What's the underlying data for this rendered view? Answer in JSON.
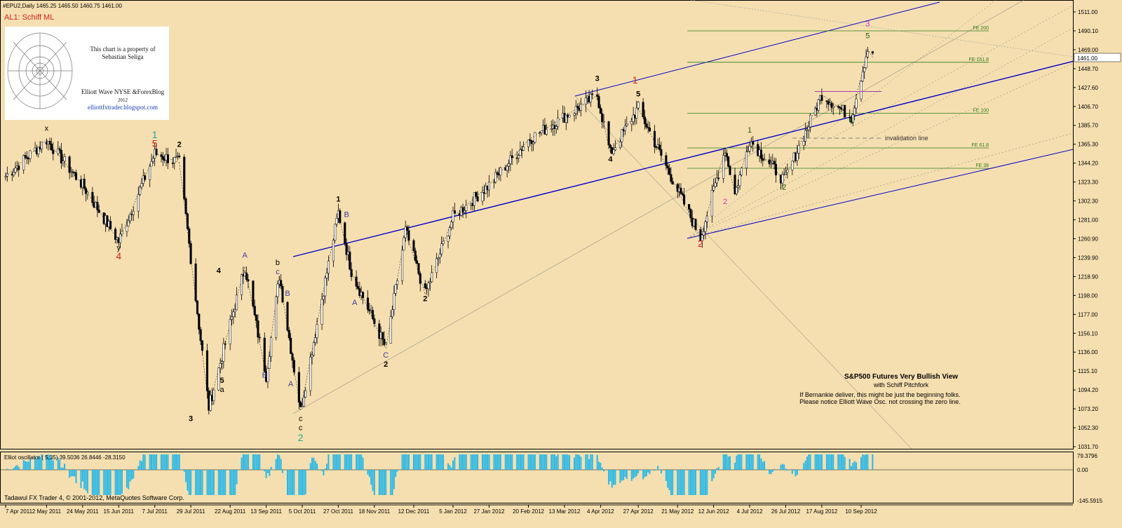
{
  "header": {
    "symbol_line": "#EPU2,Daily  1465.25 1465.50 1460.75 1461.00",
    "indicator_label": "AL1: Schiff ML"
  },
  "watermark": {
    "line1": "This chart is a property of",
    "line2": "Sebastian Seliga",
    "line3": "Elliott Wave NYSE &ForexBlog",
    "line4": "2012",
    "line5": "elliottfxtrader.blogspot.com"
  },
  "annotation": {
    "title": "S&P500 Futures Very Bullish View",
    "subtitle": "with Schiff  Pitchfork",
    "note1": "If Bernankie deliver, this might be just the beginning folks.",
    "note2": "Please notice Elliott Wave Osc. not crossing the zero line.",
    "invalidation": "invalidation line"
  },
  "fib_levels": [
    {
      "label": "FE 200",
      "price": 1490.1
    },
    {
      "label": "FE 161.8",
      "price": 1455.5
    },
    {
      "label": "FE 100",
      "price": 1399.4
    },
    {
      "label": "FE 61.8",
      "price": 1361.0
    },
    {
      "label": "FE 38",
      "price": 1338.6
    }
  ],
  "oscillator": {
    "label": "Elliot oscillator ( 5,35) 39.5036 26.8446 -28.3150",
    "ticks": [
      "79.3796",
      "0.00",
      "-145.5915"
    ]
  },
  "footer": {
    "copyright": "Tadawul FX Trader 4, © 2001-2012, MetaQuotes Software Corp."
  },
  "colors": {
    "background": "#f5dfb0",
    "candles": "#000000",
    "channel": "#0000cc",
    "fib": "#2e7d1a",
    "oscillator_bars": "#29b8e6"
  },
  "chart_data": {
    "type": "candlestick",
    "title": "S&P500 Futures Very Bullish View",
    "symbol": "#EPU2",
    "timeframe": "Daily",
    "ohlc_last": {
      "open": 1465.25,
      "high": 1465.5,
      "low": 1460.75,
      "close": 1461.0
    },
    "current_price_label": "1461.00",
    "x_tick_labels": [
      "7 Apr 2011",
      "2 May 2011",
      "24 May 2011",
      "15 Jun 2011",
      "7 Jul 2011",
      "29 Jul 2011",
      "22 Aug 2011",
      "13 Sep 2011",
      "5 Oct 2011",
      "27 Oct 2011",
      "18 Nov 2011",
      "12 Dec 2011",
      "5 Jan 2012",
      "27 Jan 2012",
      "20 Feb 2012",
      "13 Mar 2012",
      "4 Apr 2012",
      "27 Apr 2012",
      "21 May 2012",
      "12 Jun 2012",
      "4 Jul 2012",
      "26 Jul 2012",
      "17 Aug 2012",
      "10 Sep 2012"
    ],
    "y_tick_labels": [
      "1511.00",
      "1490.10",
      "1469.00",
      "1448.70",
      "1427.60",
      "1406.70",
      "1385.70",
      "1365.30",
      "1344.20",
      "1323.30",
      "1302.30",
      "1281.00",
      "1260.90",
      "1239.90",
      "1218.90",
      "1198.00",
      "1177.00",
      "1156.10",
      "1136.00",
      "1115.10",
      "1094.20",
      "1073.20",
      "1052.30",
      "1031.70"
    ],
    "ylim": [
      1025,
      1520
    ],
    "price_path": [
      {
        "date": "7 Apr 2011",
        "price": 1330
      },
      {
        "date": "2 May 2011",
        "price": 1370
      },
      {
        "date": "24 May 2011",
        "price": 1320
      },
      {
        "date": "15 Jun 2011",
        "price": 1258
      },
      {
        "date": "7 Jul 2011",
        "price": 1355
      },
      {
        "date": "22 Jul 2011",
        "price": 1345
      },
      {
        "date": "9 Aug 2011",
        "price": 1075
      },
      {
        "date": "31 Aug 2011",
        "price": 1230
      },
      {
        "date": "13 Sep 2011",
        "price": 1110
      },
      {
        "date": "21 Sep 2011",
        "price": 1220
      },
      {
        "date": "4 Oct 2011",
        "price": 1072
      },
      {
        "date": "27 Oct 2011",
        "price": 1290
      },
      {
        "date": "4 Nov 2011",
        "price": 1225
      },
      {
        "date": "25 Nov 2011",
        "price": 1140
      },
      {
        "date": "7 Dec 2011",
        "price": 1270
      },
      {
        "date": "19 Dec 2011",
        "price": 1200
      },
      {
        "date": "5 Jan 2012",
        "price": 1285
      },
      {
        "date": "27 Jan 2012",
        "price": 1320
      },
      {
        "date": "20 Feb 2012",
        "price": 1370
      },
      {
        "date": "2 Apr 2012",
        "price": 1419
      },
      {
        "date": "10 Apr 2012",
        "price": 1355
      },
      {
        "date": "27 Apr 2012",
        "price": 1405
      },
      {
        "date": "4 Jun 2012",
        "price": 1262
      },
      {
        "date": "19 Jun 2012",
        "price": 1360
      },
      {
        "date": "25 Jun 2012",
        "price": 1310
      },
      {
        "date": "4 Jul 2012",
        "price": 1370
      },
      {
        "date": "25 Jul 2012",
        "price": 1325
      },
      {
        "date": "17 Aug 2012",
        "price": 1420
      },
      {
        "date": "4 Sep 2012",
        "price": 1395
      },
      {
        "date": "14 Sep 2012",
        "price": 1470
      },
      {
        "date": "17 Sep 2012",
        "price": 1461
      }
    ],
    "wave_labels": [
      {
        "text": "x",
        "date": "2 May 2011",
        "price": 1380,
        "color": "#000000"
      },
      {
        "text": "y",
        "date": "15 Jun 2011",
        "price": 1248,
        "color": "#000000"
      },
      {
        "text": "4",
        "date": "15 Jun 2011",
        "price": 1238,
        "color": "#d42020"
      },
      {
        "text": "1",
        "date": "7 Jul 2011",
        "price": 1372,
        "color": "#1aa89a"
      },
      {
        "text": "5",
        "date": "7 Jul 2011",
        "price": 1362,
        "color": "#d42020"
      },
      {
        "text": "2",
        "date": "22 Jul 2011",
        "price": 1362,
        "color": "#000000"
      },
      {
        "text": "3",
        "date": "29 Jul 2011",
        "price": 1060,
        "color": "#000000"
      },
      {
        "text": "4",
        "date": "15 Aug 2011",
        "price": 1223,
        "color": "#000000"
      },
      {
        "text": "5",
        "date": "17 Aug 2011",
        "price": 1102,
        "color": "#000000"
      },
      {
        "text": "a",
        "date": "17 Aug 2011",
        "price": 1092,
        "color": "#000000"
      },
      {
        "text": "A",
        "date": "31 Aug 2011",
        "price": 1240,
        "color": "#3a3aa0"
      },
      {
        "text": "B",
        "date": "12 Sep 2011",
        "price": 1108,
        "color": "#3a3aa0"
      },
      {
        "text": "b",
        "date": "20 Sep 2011",
        "price": 1232,
        "color": "#000000"
      },
      {
        "text": "c",
        "date": "20 Sep 2011",
        "price": 1222,
        "color": "#3a3aa0"
      },
      {
        "text": "B",
        "date": "26 Sep 2011",
        "price": 1198,
        "color": "#3a3aa0"
      },
      {
        "text": "A",
        "date": "28 Sep 2011",
        "price": 1098,
        "color": "#3a3aa0"
      },
      {
        "text": "c",
        "date": "4 Oct 2011",
        "price": 1060,
        "color": "#000000"
      },
      {
        "text": "c",
        "date": "4 Oct 2011",
        "price": 1050,
        "color": "#000000"
      },
      {
        "text": "2",
        "date": "4 Oct 2011",
        "price": 1038,
        "color": "#1aa89a"
      },
      {
        "text": "1",
        "date": "27 Oct 2011",
        "price": 1302,
        "color": "#000000"
      },
      {
        "text": "B",
        "date": "1 Nov 2011",
        "price": 1285,
        "color": "#3a3aa0"
      },
      {
        "text": "A",
        "date": "6 Nov 2011",
        "price": 1188,
        "color": "#3a3aa0"
      },
      {
        "text": "C",
        "date": "25 Nov 2011",
        "price": 1130,
        "color": "#3a3aa0"
      },
      {
        "text": "2",
        "date": "25 Nov 2011",
        "price": 1120,
        "color": "#000000"
      },
      {
        "text": "2",
        "date": "19 Dec 2011",
        "price": 1192,
        "color": "#000000"
      },
      {
        "text": "3",
        "date": "2 Apr 2012",
        "price": 1435,
        "color": "#000000"
      },
      {
        "text": "1",
        "date": "25 Apr 2012",
        "price": 1432,
        "color": "#d42020"
      },
      {
        "text": "5",
        "date": "27 Apr 2012",
        "price": 1418,
        "color": "#000000"
      },
      {
        "text": "4",
        "date": "10 Apr 2012",
        "price": 1346,
        "color": "#000000"
      },
      {
        "text": "2",
        "date": "4 Jun 2012",
        "price": 1252,
        "color": "#d42020"
      },
      {
        "text": "2",
        "date": "19 Jun 2012",
        "price": 1299,
        "color": "#d42fd4"
      },
      {
        "text": "1",
        "date": "4 Jul 2012",
        "price": 1378,
        "color": "#1a5c10"
      },
      {
        "text": "2",
        "date": "25 Jul 2012",
        "price": 1315,
        "color": "#1a5c10"
      },
      {
        "text": "4",
        "date": "4 Sep 2012",
        "price": 1388,
        "color": "#1a5c10"
      },
      {
        "text": "3",
        "date": "14 Sep 2012",
        "price": 1495,
        "color": "#d42fd4"
      },
      {
        "text": "5",
        "date": "14 Sep 2012",
        "price": 1482,
        "color": "#1a5c10"
      }
    ]
  }
}
